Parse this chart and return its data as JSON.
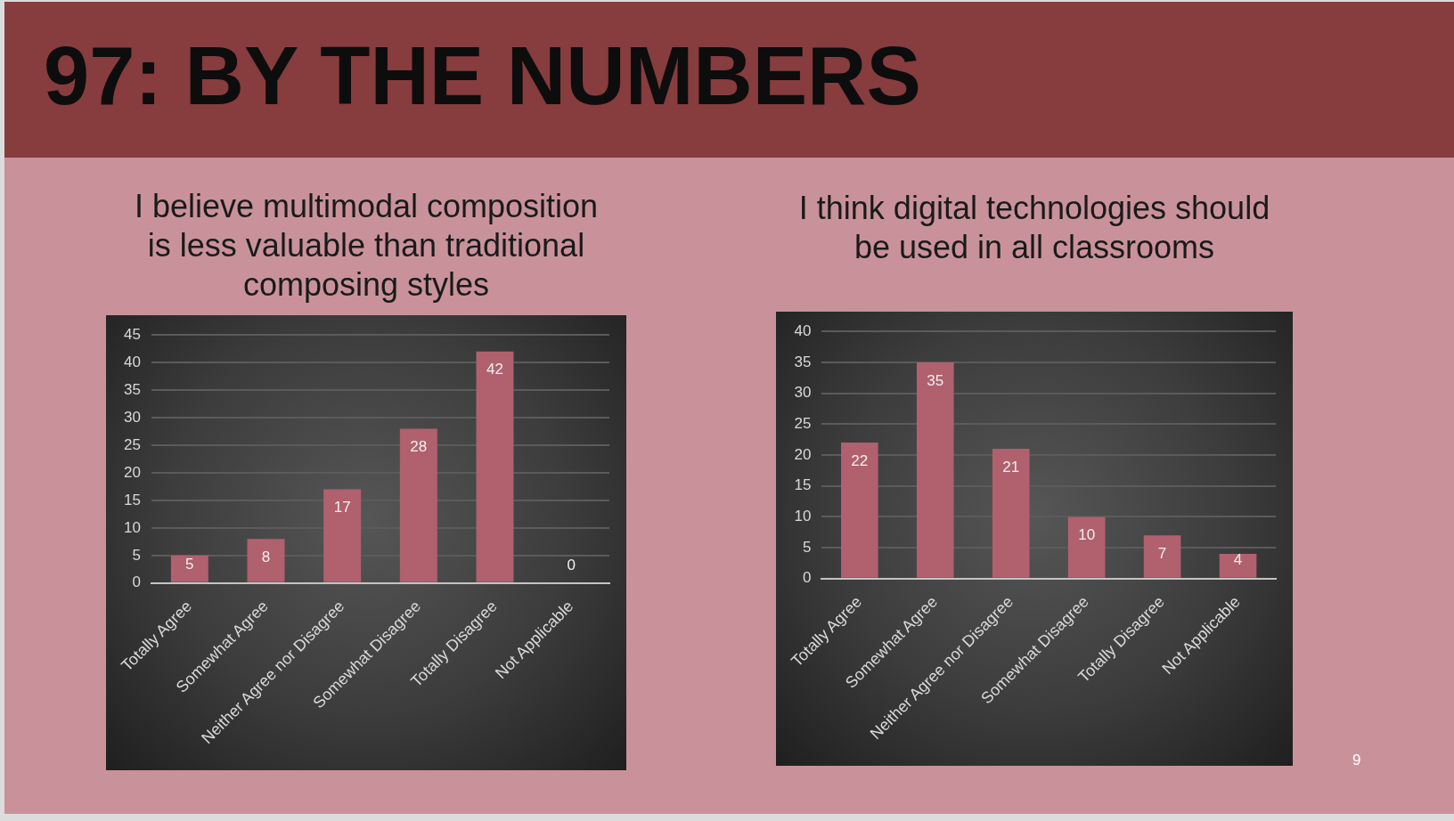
{
  "chart_data": [
    {
      "type": "bar",
      "title": "I believe multimodal composition is less valuable than traditional composing styles",
      "categories": [
        "Totally Agree",
        "Somewhat Agree",
        "Neither Agree nor Disagree",
        "Somewhat Disagree",
        "Totally Disagree",
        "Not Applicable"
      ],
      "values": [
        5,
        8,
        17,
        28,
        42,
        0
      ],
      "color": "#b1606e",
      "ylim": [
        0,
        45
      ],
      "yticks": [
        0,
        5,
        10,
        15,
        20,
        25,
        30,
        35,
        40,
        45
      ],
      "grid": "y",
      "data_labels": true,
      "annotations": [
        "97: BY THE NUMBERS"
      ]
    },
    {
      "type": "bar",
      "title": "I think digital technologies should be used in all classrooms",
      "categories": [
        "Totally Agree",
        "Somewhat Agree",
        "Neither Agree nor Disagree",
        "Somewhat Disagree",
        "Totally Disagree",
        "Not Applicable"
      ],
      "values": [
        22,
        35,
        21,
        10,
        7,
        4
      ],
      "color": "#b1606e",
      "ylim": [
        0,
        40
      ],
      "yticks": [
        0,
        5,
        10,
        15,
        20,
        25,
        30,
        35,
        40
      ],
      "grid": "y",
      "data_labels": true,
      "annotations": [
        "9"
      ]
    }
  ]
}
